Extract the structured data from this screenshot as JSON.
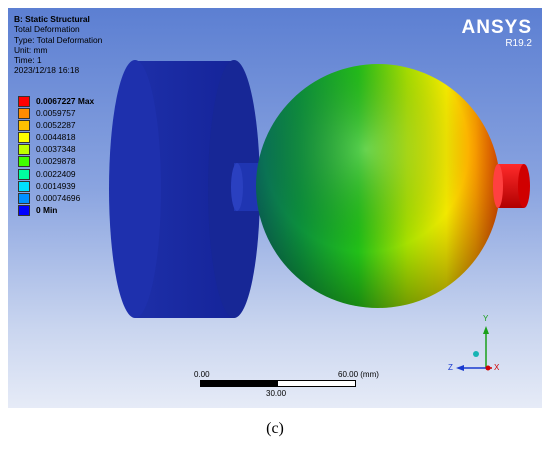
{
  "info": {
    "title": "B: Static Structural",
    "lines": [
      "Total Deformation",
      "Type: Total Deformation",
      "Unit: mm",
      "Time: 1",
      "2023/12/18 16:18"
    ]
  },
  "brand": {
    "name": "ANSYS",
    "version": "R19.2"
  },
  "legend": [
    {
      "label": "0.0067227 Max",
      "color": "#ff0000",
      "bold": true
    },
    {
      "label": "0.0059757",
      "color": "#ff8c00",
      "bold": false
    },
    {
      "label": "0.0052287",
      "color": "#ffc000",
      "bold": false
    },
    {
      "label": "0.0044818",
      "color": "#ffff00",
      "bold": false
    },
    {
      "label": "0.0037348",
      "color": "#c0ff00",
      "bold": false
    },
    {
      "label": "0.0029878",
      "color": "#40ff00",
      "bold": false
    },
    {
      "label": "0.0022409",
      "color": "#00ffa0",
      "bold": false
    },
    {
      "label": "0.0014939",
      "color": "#00e0ff",
      "bold": false
    },
    {
      "label": "0.00074696",
      "color": "#0090ff",
      "bold": false
    },
    {
      "label": "0 Min",
      "color": "#0000ff",
      "bold": true
    }
  ],
  "scale": {
    "start": "0.00",
    "end": "60.00 (mm)",
    "mid": "30.00"
  },
  "triad": {
    "y": "Y",
    "z": "Z",
    "x": "X"
  },
  "caption": "(c)"
}
